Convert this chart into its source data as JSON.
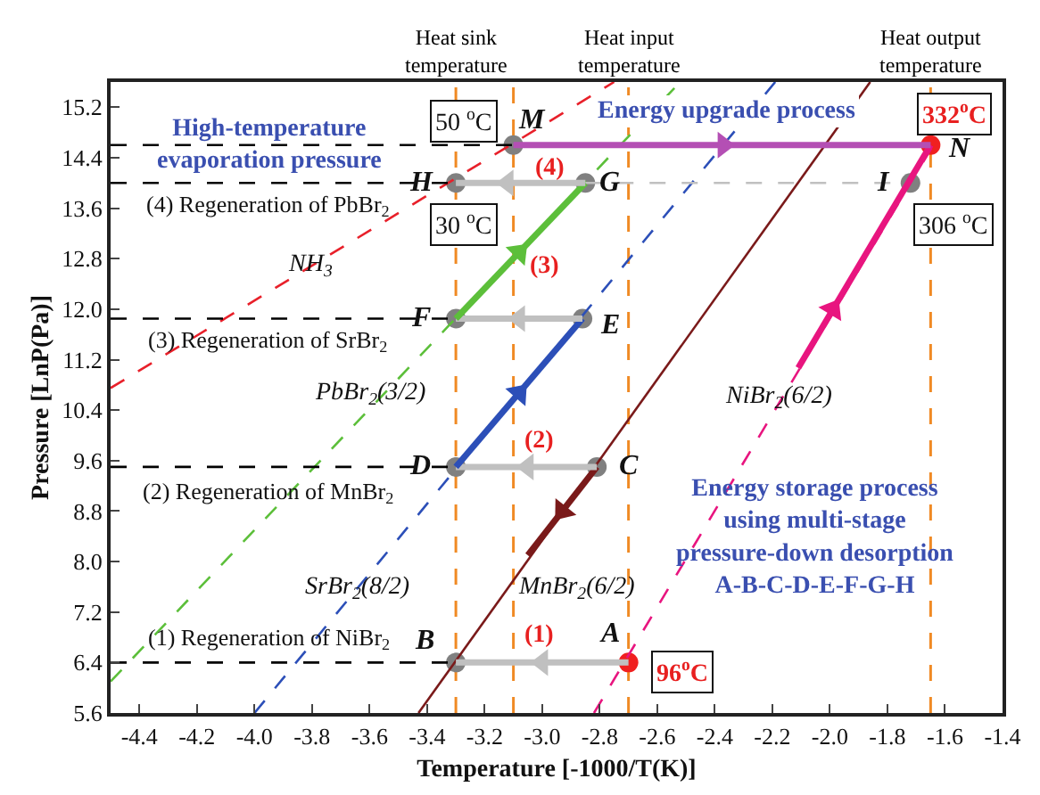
{
  "chart_data": {
    "type": "line",
    "xlabel": "Temperature [-1000/T(K)]",
    "ylabel": "Pressure [LnP(Pa)]",
    "xlim": [
      -4.5,
      -1.4
    ],
    "ylim": [
      5.6,
      15.6
    ],
    "xticks": [
      -4.4,
      -4.2,
      {
        "value": -4.0,
        "label": "-4.0"
      },
      -3.8,
      -3.6,
      -3.4,
      -3.2,
      {
        "value": -3.0,
        "label": "-3.0"
      },
      -2.8,
      -2.6,
      -2.4,
      -2.2,
      {
        "value": -2.0,
        "label": "-2.0"
      },
      -1.8,
      -1.6,
      -1.4
    ],
    "yticks": [
      5.6,
      6.4,
      7.2,
      {
        "value": 8.0,
        "label": "8.0"
      },
      8.8,
      9.6,
      10.4,
      11.2,
      {
        "value": 12.0,
        "label": "12.0"
      },
      12.8,
      13.6,
      14.4,
      15.2
    ],
    "grid": false,
    "ref_lines": [
      {
        "axis": "x",
        "value": -3.3,
        "label": "Heat sink\ntemperature",
        "color": "#f08a24",
        "line_style": "dashed"
      },
      {
        "axis": "x",
        "value": -3.1,
        "color": "#f08a24",
        "line_style": "dashed"
      },
      {
        "axis": "x",
        "value": -2.7,
        "label": "Heat input\ntemperature",
        "color": "#f08a24",
        "line_style": "dashed"
      },
      {
        "axis": "x",
        "value": -1.65,
        "label": "Heat output\ntemperature",
        "color": "#f08a24",
        "line_style": "dashed"
      }
    ],
    "series": [
      {
        "type": "scatter",
        "marker": "circle",
        "x": [
          -3.1,
          -1.65,
          -3.3,
          -2.85,
          -1.72,
          -3.3,
          -2.86,
          -3.3,
          -2.81,
          -3.3,
          -2.7
        ],
        "values": [
          14.6,
          14.6,
          14.0,
          14.0,
          14.0,
          11.85,
          11.85,
          9.5,
          9.5,
          6.4,
          6.4
        ],
        "colors": [
          "#808080",
          "#f02020",
          "#808080",
          "#808080",
          "#808080",
          "#808080",
          "#808080",
          "#808080",
          "#808080",
          "#808080",
          "#f02020"
        ]
      },
      {
        "color": "#e8202a",
        "line_style": "dashed",
        "x": [
          -4.5,
          -2.75
        ],
        "values": [
          10.75,
          15.6
        ]
      },
      {
        "color": "#5cbf3a",
        "line_style": "dashed",
        "x": [
          -4.5,
          -2.52
        ],
        "values": [
          6.1,
          15.6
        ]
      },
      {
        "color": "#2c4fb8",
        "line_style": "dashed",
        "x": [
          -4.0,
          -2.19
        ],
        "values": [
          5.6,
          15.6
        ]
      },
      {
        "color": "#7a1a1a",
        "line_style": "solid",
        "x": [
          -3.43,
          -1.86
        ],
        "values": [
          5.6,
          15.6
        ]
      },
      {
        "color": "#e8157f",
        "line_style": "dashed",
        "x": [
          -2.82,
          -1.51
        ],
        "values": [
          5.6,
          15.6
        ]
      },
      {
        "color": "#000000",
        "line_style": "dashed",
        "x": [
          -4.5,
          -3.1
        ],
        "values": [
          14.6,
          14.6
        ]
      },
      {
        "color": "#000000",
        "line_style": "dashed",
        "x": [
          -4.5,
          -3.3
        ],
        "values": [
          14.0,
          14.0
        ]
      },
      {
        "color": "#000000",
        "line_style": "dashed",
        "x": [
          -4.5,
          -3.3
        ],
        "values": [
          11.85,
          11.85
        ]
      },
      {
        "color": "#000000",
        "line_style": "dashed",
        "x": [
          -4.5,
          -3.3
        ],
        "values": [
          9.5,
          9.5
        ]
      },
      {
        "color": "#000000",
        "line_style": "dashed",
        "x": [
          -4.5,
          -3.3
        ],
        "values": [
          6.4,
          6.4
        ]
      },
      {
        "color": "#c0c0c0",
        "line_style": "dashed",
        "x": [
          -2.85,
          -1.72
        ],
        "values": [
          14.0,
          14.0
        ]
      },
      {
        "color": "#c0c0c0",
        "x": [
          -2.7,
          -3.3
        ],
        "values": [
          6.4,
          6.4
        ]
      },
      {
        "color": "#7a1a1a",
        "x": [
          -2.81,
          -3.05
        ],
        "values": [
          9.5,
          8.1
        ]
      },
      {
        "color": "#c0c0c0",
        "x": [
          -2.81,
          -3.3
        ],
        "values": [
          9.5,
          9.5
        ]
      },
      {
        "color": "#2c4fb8",
        "x": [
          -3.3,
          -2.86
        ],
        "values": [
          9.5,
          11.85
        ]
      },
      {
        "color": "#c0c0c0",
        "x": [
          -2.86,
          -3.3
        ],
        "values": [
          11.85,
          11.85
        ]
      },
      {
        "color": "#5cbf3a",
        "x": [
          -3.3,
          -2.85
        ],
        "values": [
          11.85,
          14.0
        ]
      },
      {
        "color": "#c0c0c0",
        "x": [
          -2.85,
          -3.3
        ],
        "values": [
          14.0,
          14.0
        ]
      },
      {
        "color": "#e8157f",
        "x": [
          -2.11,
          -1.65
        ],
        "values": [
          11.07,
          14.6
        ]
      },
      {
        "color": "#b44fb4",
        "x": [
          -3.1,
          -1.65
        ],
        "values": [
          14.6,
          14.6
        ]
      },
      {
        "type": "scatter",
        "marker": "triangle",
        "x": [
          -3.0,
          -2.93,
          -3.05,
          -3.08,
          -3.08,
          -3.08,
          -3.12,
          -1.99,
          -2.37
        ],
        "values": [
          6.4,
          8.8,
          9.5,
          10.67,
          11.85,
          12.9,
          14.0,
          12.0,
          14.6
        ],
        "colors": [
          "#c0c0c0",
          "#7a1a1a",
          "#c0c0c0",
          "#2c4fb8",
          "#c0c0c0",
          "#5cbf3a",
          "#c0c0c0",
          "#e8157f",
          "#b44fb4"
        ]
      }
    ],
    "annotations": [
      {
        "text": "M",
        "x": -3.1,
        "y": 14.6
      },
      {
        "text": "N",
        "x": -1.65,
        "y": 14.6
      },
      {
        "text": "H",
        "x": -3.3,
        "y": 14.0
      },
      {
        "text": "G",
        "x": -2.85,
        "y": 14.0
      },
      {
        "text": "I",
        "x": -1.72,
        "y": 14.0
      },
      {
        "text": "F",
        "x": -3.3,
        "y": 11.85
      },
      {
        "text": "E",
        "x": -2.86,
        "y": 11.85
      },
      {
        "text": "D",
        "x": -3.3,
        "y": 9.5
      },
      {
        "text": "C",
        "x": -2.81,
        "y": 9.5
      },
      {
        "text": "B",
        "x": -3.3,
        "y": 6.4
      },
      {
        "text": "A",
        "x": -2.7,
        "y": 6.4
      },
      "(1)",
      "(2)",
      "(3)",
      "(4)",
      {
        "text": "50 $^{o}$C",
        "x": -3.27,
        "y": 14.97
      },
      {
        "text": "30 $^{o}$C",
        "x": -3.27,
        "y": 13.35
      },
      {
        "text": "332$^{o}$C",
        "x": -1.57,
        "y": 15.08
      },
      {
        "text": "306 $^{o}$C",
        "x": -1.57,
        "y": 13.35
      },
      {
        "text": "96$^{o}$C",
        "x": -2.51,
        "y": 6.26
      },
      {
        "text": "NH$_{3}$",
        "x": -3.81,
        "y": 12.69
      },
      {
        "text": "PbBr$_{2}$(3/2)",
        "x": -3.6,
        "y": 10.65
      },
      {
        "text": "SrBr$_{2}$(8/2)",
        "x": -3.64,
        "y": 7.57
      },
      "MnBr$_{2}$(6/2)",
      {
        "text": "NiBr$_{2}$(6/2)",
        "x": -2.18,
        "y": 10.6
      },
      "(1) Regeneration of NiBr$_{2}$",
      "(2) Regeneration of MnBr$_{2}$",
      "(3) Regeneration of SrBr$_{2}$",
      "(4) Regeneration of PbBr$_{2}$",
      "High-temperature\nevaporation pressure",
      "Energy upgrade process",
      "Energy storage process\nusing multi-stage\npressure-down desorption\nA-B-C-D-E-F-G-H"
    ]
  }
}
